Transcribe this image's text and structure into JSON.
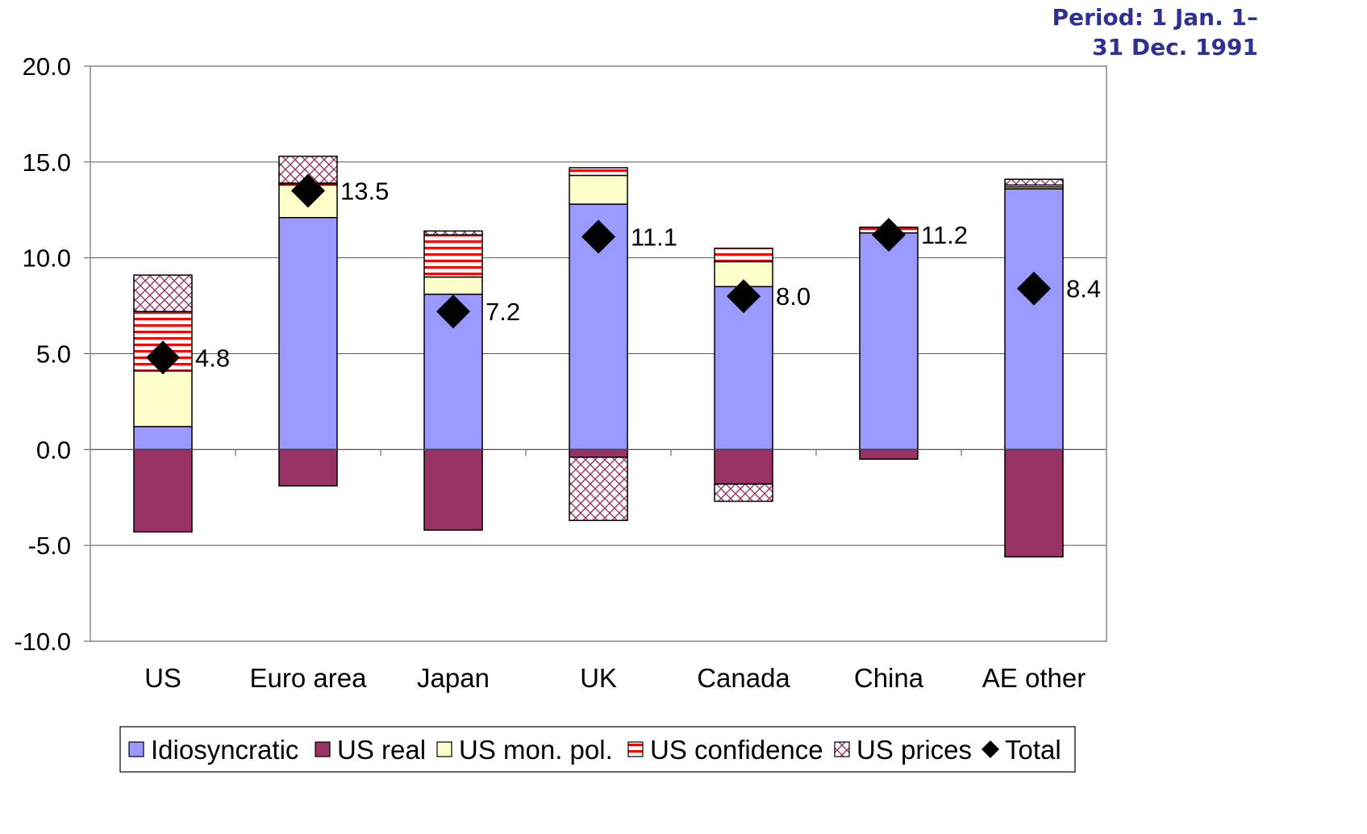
{
  "note": "Period: 1 Jan. 1– 31 Dec. 1991",
  "chart_data": {
    "type": "bar",
    "stacked": true,
    "title": "",
    "xlabel": "",
    "ylabel": "",
    "ylim": [
      -10,
      20
    ],
    "y_ticks": [
      "-10.0",
      "-5.0",
      "0.0",
      "5.0",
      "10.0",
      "15.0",
      "20.0"
    ],
    "grid": true,
    "legend_position": "bottom",
    "categories": [
      "US",
      "Euro area",
      "Japan",
      "UK",
      "Canada",
      "China",
      "AE other"
    ],
    "series": [
      {
        "name": "Idiosyncratic",
        "color": "#9999ff",
        "pattern": "solid",
        "values": [
          1.2,
          12.1,
          8.1,
          12.8,
          8.5,
          11.3,
          13.6
        ]
      },
      {
        "name": "US real",
        "color": "#993366",
        "pattern": "solid",
        "values": [
          -4.3,
          -1.9,
          -4.2,
          -0.4,
          -1.8,
          -0.5,
          -5.6
        ]
      },
      {
        "name": "US mon. pol.",
        "color": "#ffffcc",
        "pattern": "solid",
        "values": [
          2.9,
          1.7,
          0.9,
          1.5,
          1.3,
          0.0,
          0.1
        ]
      },
      {
        "name": "US confidence",
        "color": "#ff0000",
        "pattern": "horizontal-stripes",
        "values": [
          3.1,
          0.1,
          2.2,
          0.4,
          0.7,
          0.3,
          0.1
        ]
      },
      {
        "name": "US prices",
        "color": "#993366",
        "pattern": "crosshatch",
        "values": [
          1.9,
          1.4,
          0.2,
          -3.3,
          -0.9,
          0.0,
          0.3
        ]
      }
    ],
    "total": {
      "name": "Total",
      "values": [
        4.8,
        13.5,
        7.2,
        11.1,
        8.0,
        11.2,
        8.4
      ],
      "labels": [
        "4.8",
        "13.5",
        "7.2",
        "11.1",
        "8.0",
        "11.2",
        "8.4"
      ]
    }
  }
}
